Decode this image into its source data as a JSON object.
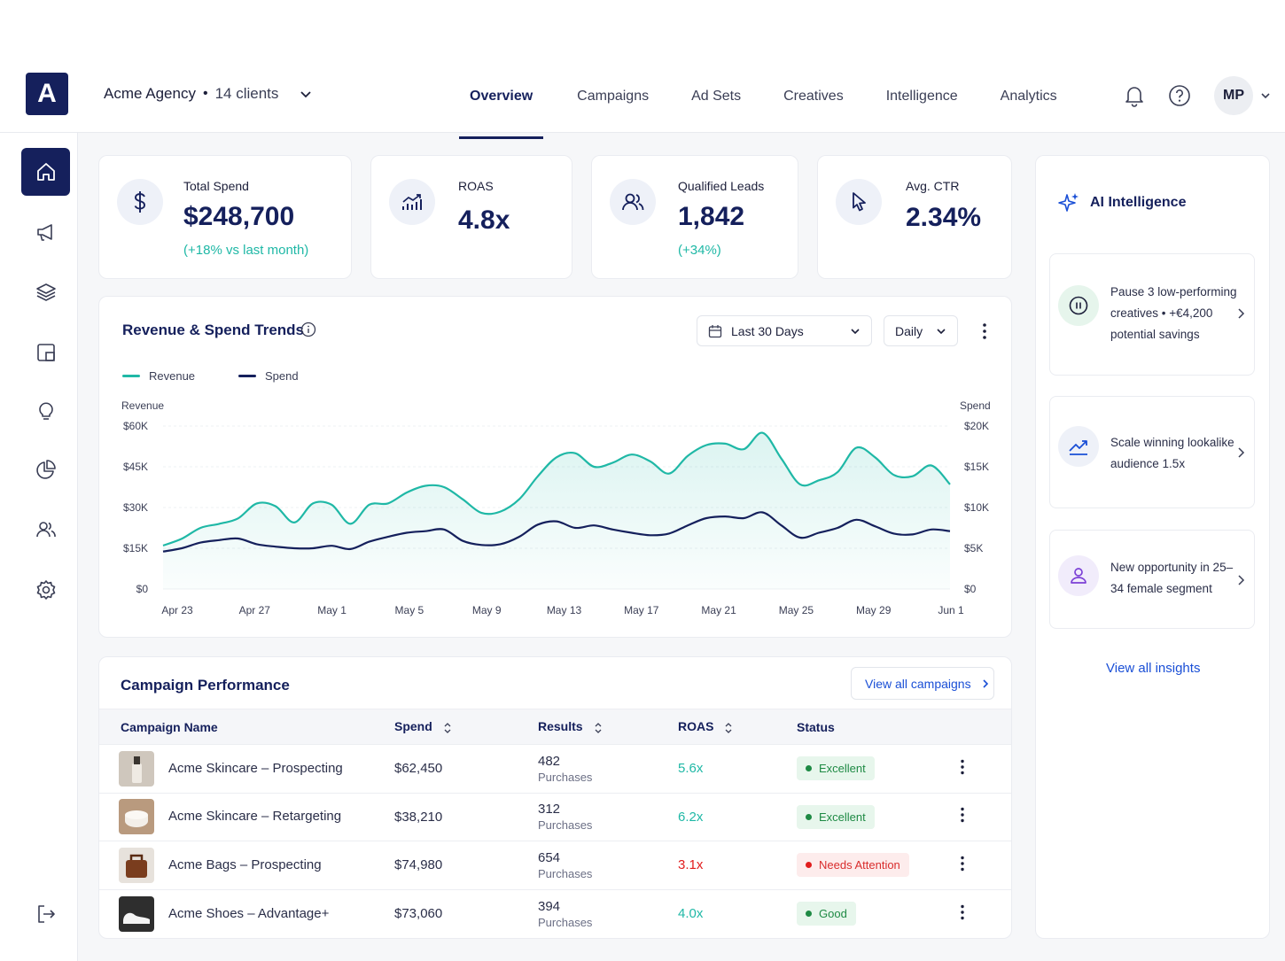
{
  "app": {
    "logo_letter": "A",
    "agency_name": "Acme Agency",
    "separator": "•",
    "clients": "14 clients"
  },
  "nav": {
    "tabs": [
      "Overview",
      "Campaigns",
      "Ad Sets",
      "Creatives",
      "Intelligence",
      "Analytics"
    ],
    "active": "Overview"
  },
  "user": {
    "initials": "MP"
  },
  "sidebar": {
    "icons": [
      "home-icon",
      "megaphone-icon",
      "layers-icon",
      "creatives-icon",
      "lightbulb-icon",
      "pie-chart-icon",
      "users-icon",
      "settings-icon",
      "logout-icon"
    ]
  },
  "kpis": [
    {
      "label": "Total Spend",
      "value": "$248,700",
      "change": "(+18% vs last month)",
      "icon": "dollar-icon"
    },
    {
      "label": "ROAS",
      "value": "4.8x",
      "change": "",
      "icon": "bar-trend-icon"
    },
    {
      "label": "Qualified Leads",
      "value": "1,842",
      "change": "(+34%)",
      "icon": "users-icon"
    },
    {
      "label": "Avg. CTR",
      "value": "2.34%",
      "change": "",
      "icon": "cursor-icon"
    }
  ],
  "trends": {
    "title": "Revenue & Spend Trends",
    "range_label": "Last 30 Days",
    "interval_label": "Daily"
  },
  "chart_data": {
    "type": "area",
    "title": "Revenue & Spend Trends",
    "x_ticks": [
      "Apr 23",
      "Apr 27",
      "May 1",
      "May 5",
      "May 9",
      "May 13",
      "May 17",
      "May 21",
      "May 25",
      "May 29",
      "Jun 1"
    ],
    "left_axis": {
      "label": "Revenue",
      "ticks": [
        "$0",
        "$15K",
        "$30K",
        "$45K",
        "$60K"
      ],
      "ylim": [
        0,
        60000
      ]
    },
    "right_axis": {
      "label": "Spend",
      "ticks": [
        "$0",
        "$5K",
        "$10K",
        "$15K",
        "$20K"
      ],
      "ylim": [
        0,
        20000
      ]
    },
    "series": [
      {
        "name": "Revenue",
        "axis": "left",
        "color": "#1fb8a6",
        "values": [
          16000,
          18500,
          22500,
          24000,
          26000,
          31500,
          30500,
          24500,
          31500,
          31000,
          24000,
          31000,
          31500,
          35500,
          38000,
          37500,
          33000,
          28000,
          28500,
          33000,
          41500,
          48500,
          50000,
          45000,
          46500,
          49500,
          47000,
          42500,
          49000,
          53000,
          53500,
          51500,
          57500,
          48000,
          38500,
          40000,
          43000,
          52000,
          48500,
          42000,
          41500,
          45500,
          38500
        ]
      },
      {
        "name": "Spend",
        "axis": "right",
        "color": "#15205c",
        "values": [
          4600,
          5000,
          5700,
          6000,
          6200,
          5500,
          5200,
          5000,
          5000,
          5300,
          4900,
          5800,
          6400,
          6900,
          7100,
          7300,
          5900,
          5400,
          5500,
          6400,
          7900,
          8300,
          7500,
          7800,
          7300,
          6900,
          6600,
          6800,
          7800,
          8700,
          8900,
          8700,
          9400,
          7800,
          6300,
          6900,
          7500,
          8500,
          7700,
          6800,
          6700,
          7300,
          7100
        ]
      }
    ]
  },
  "campaigns": {
    "title": "Campaign Performance",
    "view_all_label": "View all campaigns",
    "columns": [
      "Campaign Name",
      "Spend",
      "Results",
      "ROAS",
      "Status"
    ],
    "rows": [
      {
        "name": "Acme Skincare – Prospecting",
        "spend": "$62,450",
        "results": "482",
        "results_unit": "Purchases",
        "roas": "5.6x",
        "status": "Excellent",
        "thumb": "bottle"
      },
      {
        "name": "Acme Skincare – Retargeting",
        "spend": "$38,210",
        "results": "312",
        "results_unit": "Purchases",
        "roas": "6.2x",
        "status": "Excellent",
        "thumb": "jar"
      },
      {
        "name": "Acme Bags – Prospecting",
        "spend": "$74,980",
        "results": "654",
        "results_unit": "Purchases",
        "roas": "3.1x",
        "status": "Needs Attention",
        "thumb": "bag"
      },
      {
        "name": "Acme Shoes – Advantage+",
        "spend": "$73,060",
        "results": "394",
        "results_unit": "Purchases",
        "roas": "4.0x",
        "status": "Good",
        "thumb": "shoe"
      }
    ]
  },
  "status_colors": {
    "Excellent": {
      "bg": "#e7f6ec",
      "fg": "#1e8a44",
      "dot": "#1e8a44"
    },
    "Good": {
      "bg": "#e7f6ec",
      "fg": "#1e8a44",
      "dot": "#1e8a44"
    },
    "Needs Attention": {
      "bg": "#fdecec",
      "fg": "#d92d2d",
      "dot": "#e11d1d"
    }
  },
  "roas_colors": {
    "good": "#1fb8a6",
    "bad": "#e11d1d"
  },
  "ai": {
    "title": "AI Intelligence",
    "insights": [
      {
        "text": "Pause 3 low-performing creatives • +€4,200 potential savings",
        "icon": "pause-icon"
      },
      {
        "text": "Scale winning lookalike audience 1.5x",
        "icon": "trend-up-icon"
      },
      {
        "text": "New opportunity in 25–34 female segment",
        "icon": "person-icon"
      }
    ],
    "view_all_label": "View all insights"
  }
}
